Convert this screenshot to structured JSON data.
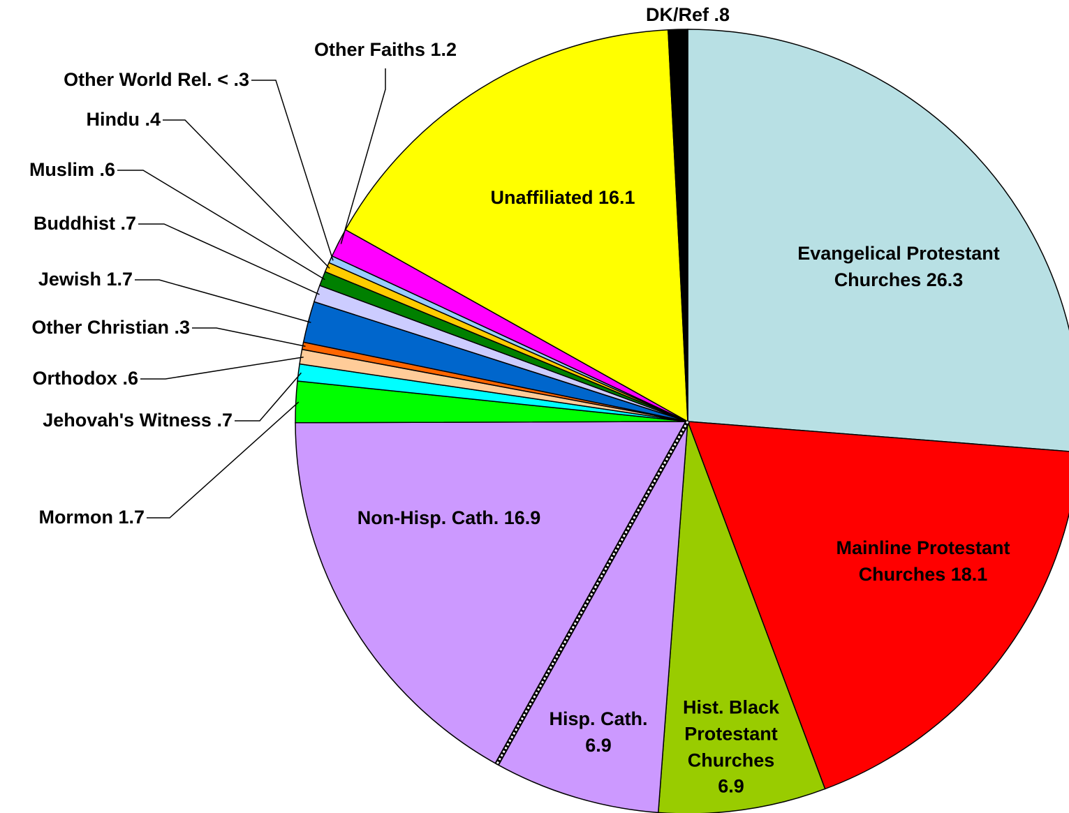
{
  "chart_data": {
    "type": "pie",
    "categories": [
      "Evangelical Protestant Churches",
      "Mainline Protestant Churches",
      "Hist. Black Protestant Churches",
      "Hisp. Cath.",
      "Non-Hisp. Cath.",
      "Mormon",
      "Jehovah's Witness",
      "Orthodox",
      "Other Christian",
      "Jewish",
      "Buddhist",
      "Muslim",
      "Hindu",
      "Other World Rel.",
      "Other Faiths",
      "Unaffiliated",
      "DK/Ref"
    ],
    "values": [
      26.3,
      18.1,
      6.9,
      6.9,
      16.9,
      1.7,
      0.7,
      0.6,
      0.3,
      1.7,
      0.7,
      0.6,
      0.4,
      0.3,
      1.2,
      16.1,
      0.8
    ],
    "value_labels": [
      "26.3",
      "18.1",
      "6.9",
      "6.9",
      "16.9",
      "1.7",
      ".7",
      ".6",
      ".3",
      "1.7",
      ".7",
      ".6",
      ".4",
      "< .3",
      "1.2",
      "16.1",
      ".8"
    ],
    "colors": [
      "#b8e0e4",
      "#ff0000",
      "#99cc00",
      "#cc99ff",
      "#cc99ff",
      "#00ff00",
      "#00ffff",
      "#ffcc99",
      "#ff6600",
      "#0066cc",
      "#ccccff",
      "#008000",
      "#ffcc00",
      "#99ccff",
      "#ff00ff",
      "#ffff00",
      "#000000"
    ]
  }
}
